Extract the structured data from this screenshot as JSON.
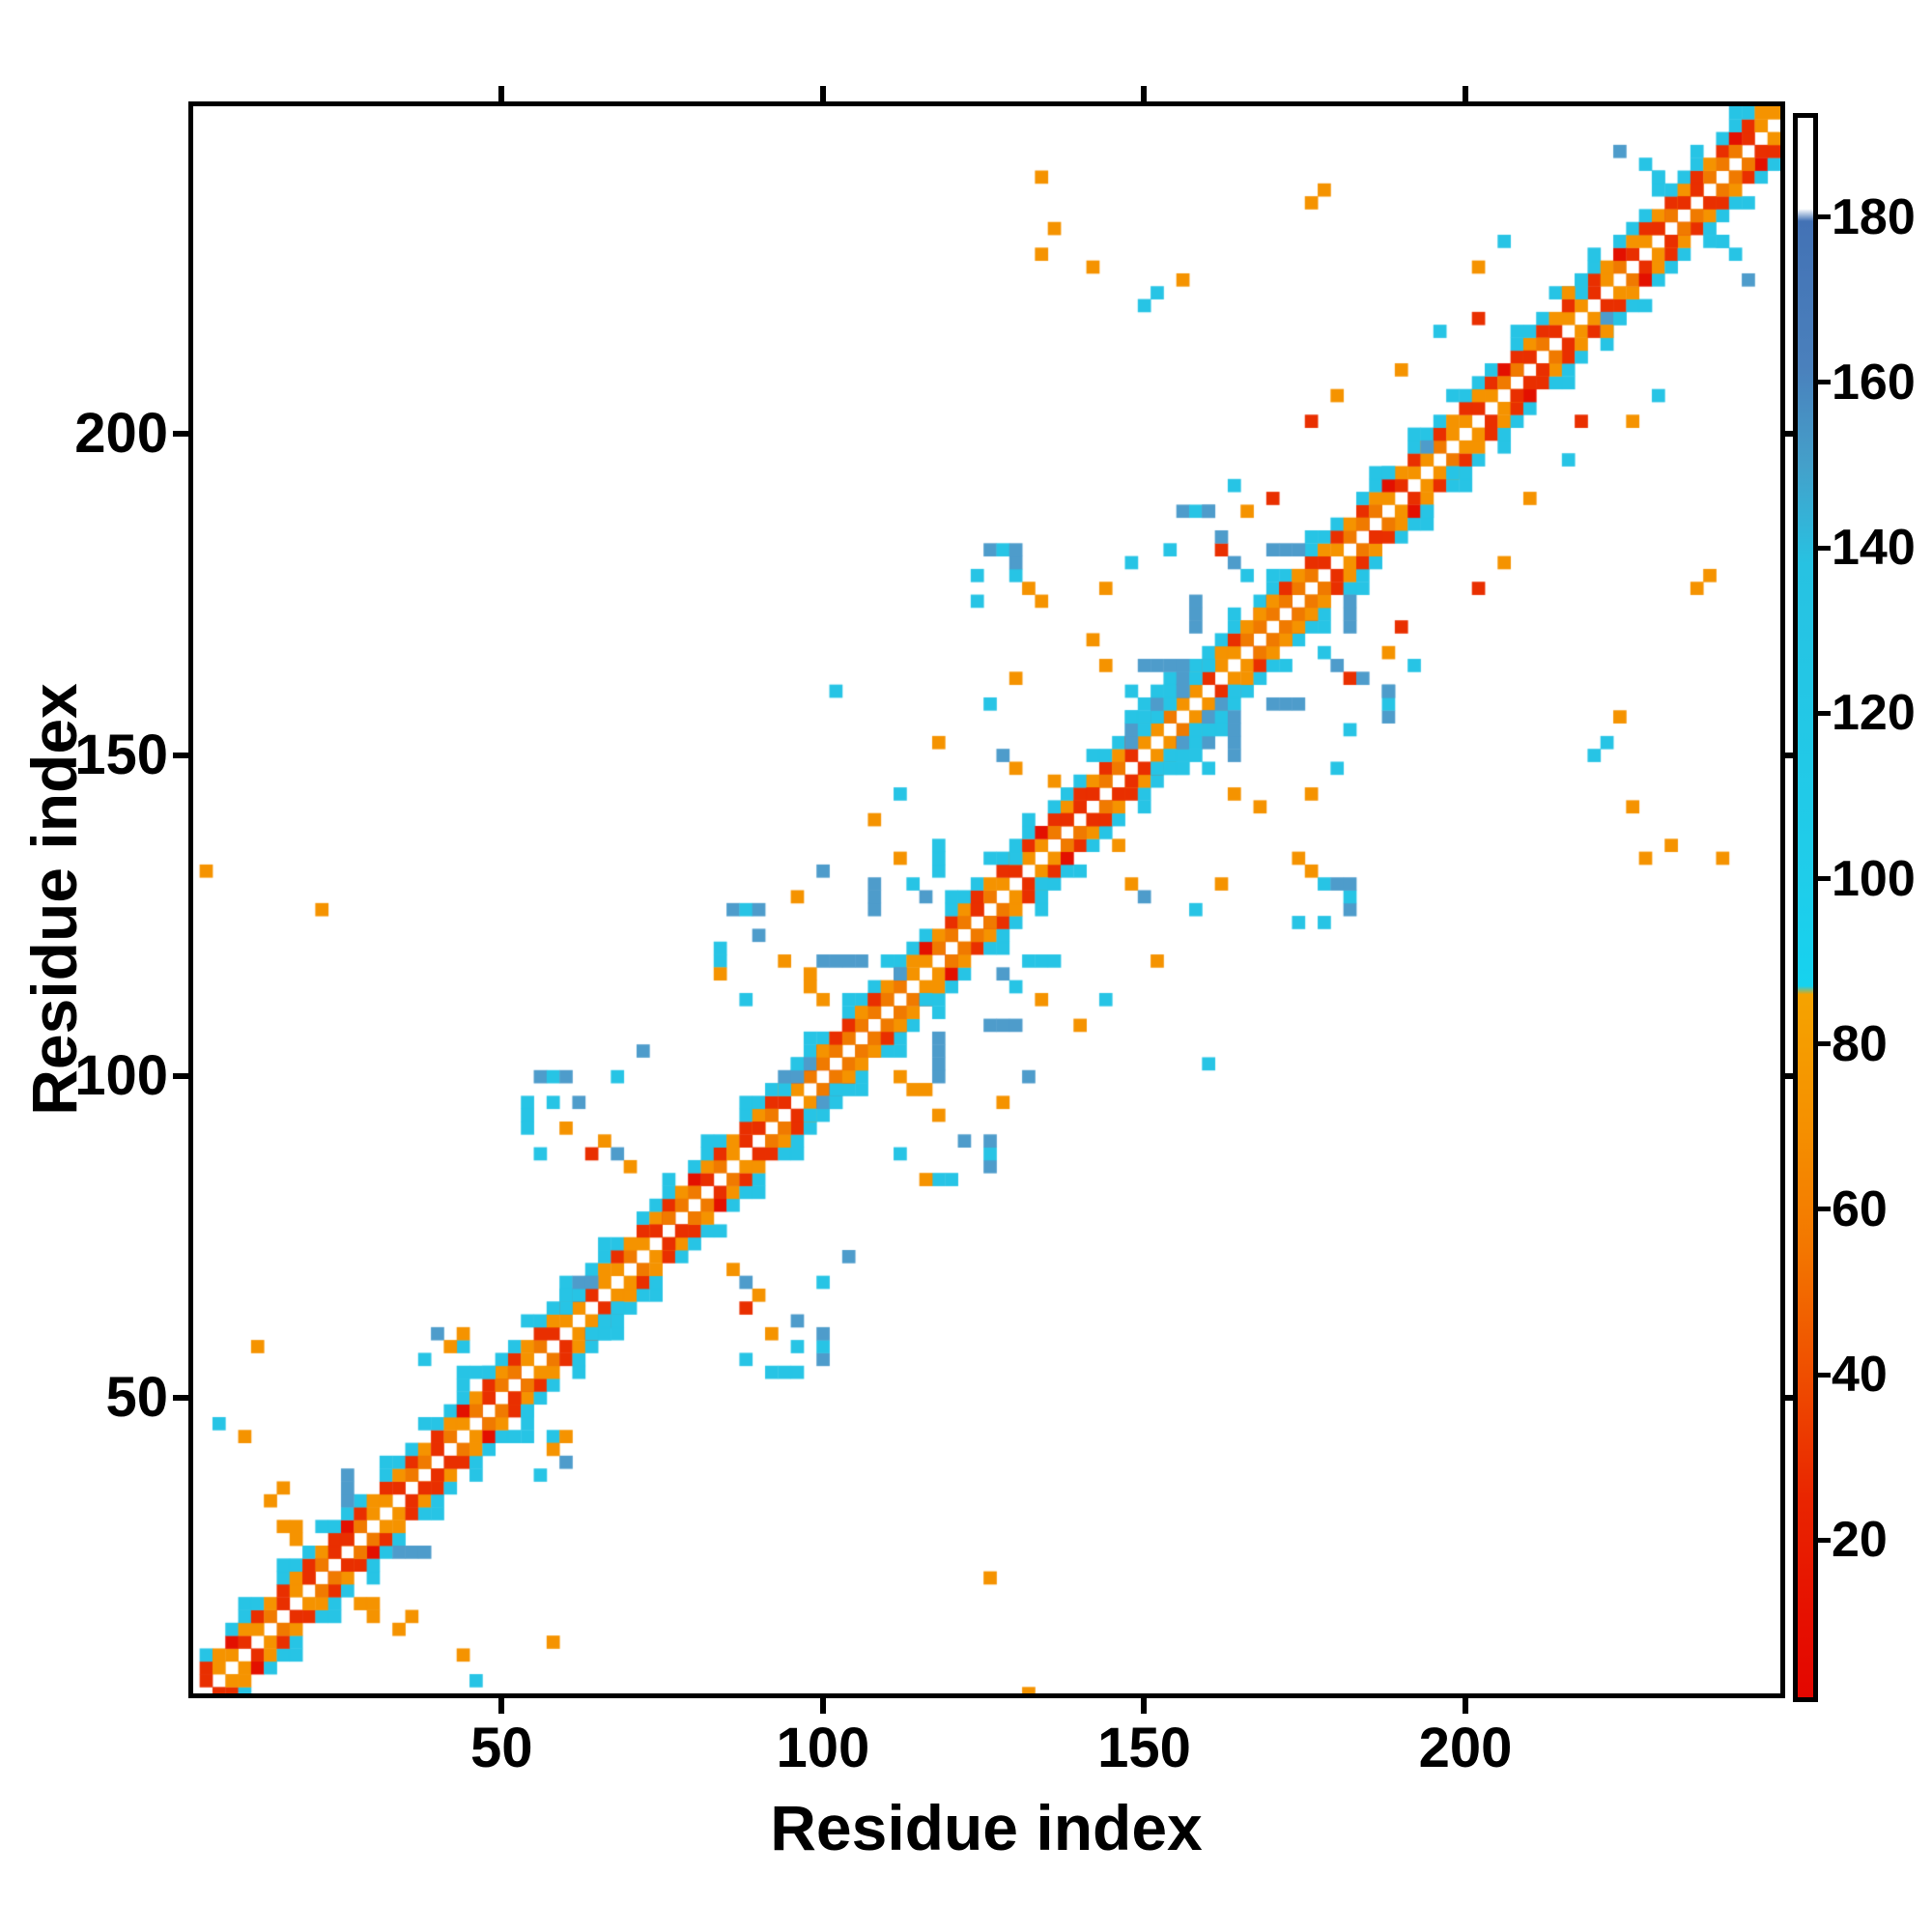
{
  "chart_data": {
    "type": "heatmap",
    "title": "",
    "xlabel": "Residue index",
    "ylabel": "Residue index",
    "x_range": [
      2,
      249
    ],
    "y_range": [
      4,
      251
    ],
    "axis_ticks": [
      50,
      100,
      150,
      200
    ],
    "grid": false,
    "colorbar": {
      "range": [
        1,
        192
      ],
      "ticks": [
        20,
        40,
        60,
        80,
        100,
        120,
        140,
        160,
        180
      ],
      "stops": [
        {
          "v": 192,
          "c": "#ffffff"
        },
        {
          "v": 181,
          "c": "#ffffff"
        },
        {
          "v": 179.5,
          "c": "#4372b5"
        },
        {
          "v": 162,
          "c": "#4a80bc"
        },
        {
          "v": 150,
          "c": "#44a0ca"
        },
        {
          "v": 138,
          "c": "#27c2e2"
        },
        {
          "v": 100,
          "c": "#1fcdea"
        },
        {
          "v": 87,
          "c": "#16d2ef"
        },
        {
          "v": 86,
          "c": "#f5a300"
        },
        {
          "v": 70,
          "c": "#f59000"
        },
        {
          "v": 55,
          "c": "#f37600"
        },
        {
          "v": 40,
          "c": "#ef4e00"
        },
        {
          "v": 25,
          "c": "#e92500"
        },
        {
          "v": 10,
          "c": "#e60f00"
        },
        {
          "v": 1,
          "c": "#e30700"
        }
      ]
    },
    "map": {
      "seed": 1234,
      "n_residues": 247,
      "residues_per_cell": 2,
      "palette": {
        "white": "#ffffff",
        "orange": "#f59300",
        "orange2": "#f07a00",
        "red": "#e92f00",
        "red2": "#e31000",
        "cyan": "#27c4e5",
        "blue": "#4e9ccb",
        "blue2": "#4579b8"
      },
      "band": {
        "half_width_cells": 3,
        "fringe_cells": 4
      },
      "bulges": [
        {
          "r": 24,
          "type": "orange",
          "R": 2
        },
        {
          "r": 38,
          "type": "orange",
          "R": 1
        },
        {
          "r": 50,
          "type": "orange",
          "R": 2
        },
        {
          "r": 64,
          "type": "cyan",
          "R": 2
        },
        {
          "r": 78,
          "type": "orange",
          "R": 2
        },
        {
          "r": 92,
          "type": "orange",
          "R": 1
        },
        {
          "r": 98,
          "type": "cyan",
          "R": 2
        },
        {
          "r": 105,
          "type": "orange",
          "R": 3
        },
        {
          "r": 113,
          "type": "cyan",
          "R": 1
        },
        {
          "r": 122,
          "type": "orange",
          "R": 2
        },
        {
          "r": 131,
          "type": "cyan",
          "R": 1
        },
        {
          "r": 139,
          "type": "orange",
          "R": 2
        },
        {
          "r": 146,
          "type": "orange",
          "R": 1
        },
        {
          "r": 154,
          "type": "cyan",
          "R": 3
        },
        {
          "r": 160,
          "type": "cyan",
          "R": 2
        },
        {
          "r": 171,
          "type": "orange",
          "R": 3
        },
        {
          "r": 186,
          "type": "orange",
          "R": 1
        },
        {
          "r": 196,
          "type": "cyan",
          "R": 1
        },
        {
          "r": 209,
          "type": "orange",
          "R": 2
        },
        {
          "r": 219,
          "type": "cyan",
          "R": 1
        },
        {
          "r": 233,
          "type": "orange",
          "R": 2
        },
        {
          "r": 241,
          "type": "orange",
          "R": 1
        }
      ],
      "wings": [
        {
          "r": 24,
          "ext": 16,
          "hook": false
        },
        {
          "r": 50,
          "ext": 10,
          "hook": false
        },
        {
          "r": 78,
          "ext": 22,
          "hook": true
        },
        {
          "r": 105,
          "ext": 20,
          "hook": true
        },
        {
          "r": 122,
          "ext": 13,
          "hook": false
        },
        {
          "r": 139,
          "ext": 11,
          "hook": false
        },
        {
          "r": 154,
          "ext": 28,
          "hook": true
        },
        {
          "r": 171,
          "ext": 16,
          "hook": true
        },
        {
          "r": 209,
          "ext": 8,
          "hook": false
        },
        {
          "r": 233,
          "ext": 9,
          "hook": false
        }
      ],
      "runs": [
        {
          "i": 100,
          "j": 118,
          "dir": "h",
          "len": 4,
          "color": "blue"
        },
        {
          "i": 108,
          "j": 126,
          "dir": "v",
          "len": 3,
          "color": "blue"
        },
        {
          "i": 26,
          "j": 34,
          "dir": "v",
          "len": 3,
          "color": "blue"
        },
        {
          "i": 150,
          "j": 163,
          "dir": "h",
          "len": 4,
          "color": "blue"
        },
        {
          "i": 158,
          "j": 170,
          "dir": "v",
          "len": 3,
          "color": "blue"
        },
        {
          "i": 170,
          "j": 181,
          "dir": "h",
          "len": 3,
          "color": "blue"
        },
        {
          "i": 44,
          "j": 53,
          "dir": "h",
          "len": 3,
          "color": "cyan"
        },
        {
          "i": 118,
          "j": 131,
          "dir": "v",
          "len": 3,
          "color": "cyan"
        }
      ],
      "specks": [
        [
          6,
          45,
          "cyan"
        ],
        [
          9,
          44,
          "orange"
        ],
        [
          11,
          58,
          "orange"
        ],
        [
          3,
          132,
          "orange"
        ],
        [
          22,
          125,
          "orange"
        ],
        [
          38,
          55,
          "cyan"
        ],
        [
          41,
          57,
          "orange"
        ],
        [
          44,
          60,
          "orange"
        ],
        [
          56,
          88,
          "cyan"
        ],
        [
          60,
          91,
          "orange"
        ],
        [
          63,
          87,
          "red"
        ],
        [
          68,
          100,
          "cyan"
        ],
        [
          72,
          104,
          "blue"
        ],
        [
          84,
          116,
          "orange"
        ],
        [
          88,
          112,
          "cyan"
        ],
        [
          96,
          128,
          "orange"
        ],
        [
          100,
          132,
          "blue"
        ],
        [
          102,
          159,
          "cyan"
        ],
        [
          108,
          140,
          "orange"
        ],
        [
          112,
          144,
          "cyan"
        ],
        [
          118,
          152,
          "orange"
        ],
        [
          126,
          158,
          "cyan"
        ],
        [
          130,
          162,
          "orange"
        ],
        [
          133,
          228,
          "orange"
        ],
        [
          136,
          232,
          "orange"
        ],
        [
          141,
          226,
          "orange"
        ],
        [
          134,
          240,
          "orange"
        ],
        [
          150,
          219,
          "cyan"
        ],
        [
          152,
          222,
          "cyan"
        ],
        [
          155,
          224,
          "orange"
        ],
        [
          144,
          176,
          "orange"
        ],
        [
          148,
          180,
          "cyan"
        ],
        [
          160,
          188,
          "blue"
        ],
        [
          163,
          191,
          "cyan"
        ],
        [
          166,
          187,
          "orange"
        ],
        [
          169,
          190,
          "red"
        ],
        [
          175,
          235,
          "orange"
        ],
        [
          178,
          238,
          "orange"
        ],
        [
          176,
          202,
          "red"
        ],
        [
          179,
          205,
          "orange"
        ],
        [
          187,
          194,
          "cyan"
        ],
        [
          189,
          209,
          "orange"
        ],
        [
          196,
          216,
          "cyan"
        ],
        [
          202,
          226,
          "orange"
        ],
        [
          206,
          229,
          "cyan"
        ],
        [
          216,
          221,
          "orange"
        ],
        [
          218,
          224,
          "cyan"
        ]
      ]
    }
  }
}
